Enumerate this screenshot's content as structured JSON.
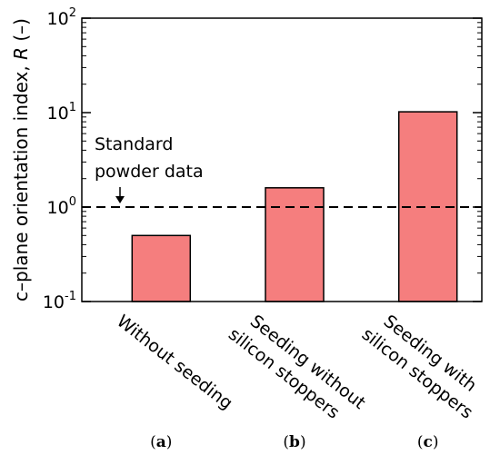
{
  "chart_data": {
    "type": "bar",
    "yscale": "log",
    "ylim": [
      0.1,
      100
    ],
    "yticks": [
      {
        "value": 0.1,
        "base": "10",
        "exp": "-1"
      },
      {
        "value": 1,
        "base": "10",
        "exp": "0"
      },
      {
        "value": 10,
        "base": "10",
        "exp": "1"
      },
      {
        "value": 100,
        "base": "10",
        "exp": "2"
      }
    ],
    "ylabel": {
      "prefix": "c–plane orientation index, ",
      "italic": "R",
      "suffix": " (–)"
    },
    "categories": [
      {
        "lines": [
          "Without seeding"
        ],
        "panel": "a"
      },
      {
        "lines": [
          "Seeding without",
          "silicon stoppers"
        ],
        "panel": "b"
      },
      {
        "lines": [
          "Seeding with",
          "silicon stoppers"
        ],
        "panel": "c"
      }
    ],
    "values": [
      0.5,
      1.6,
      10.2
    ],
    "reference_line": {
      "value": 1.0,
      "style": "dashed",
      "label_lines": [
        "Standard",
        "powder data"
      ]
    },
    "bar_color": "#f57e7e",
    "bar_edge_color": "#000000",
    "grid": false
  }
}
